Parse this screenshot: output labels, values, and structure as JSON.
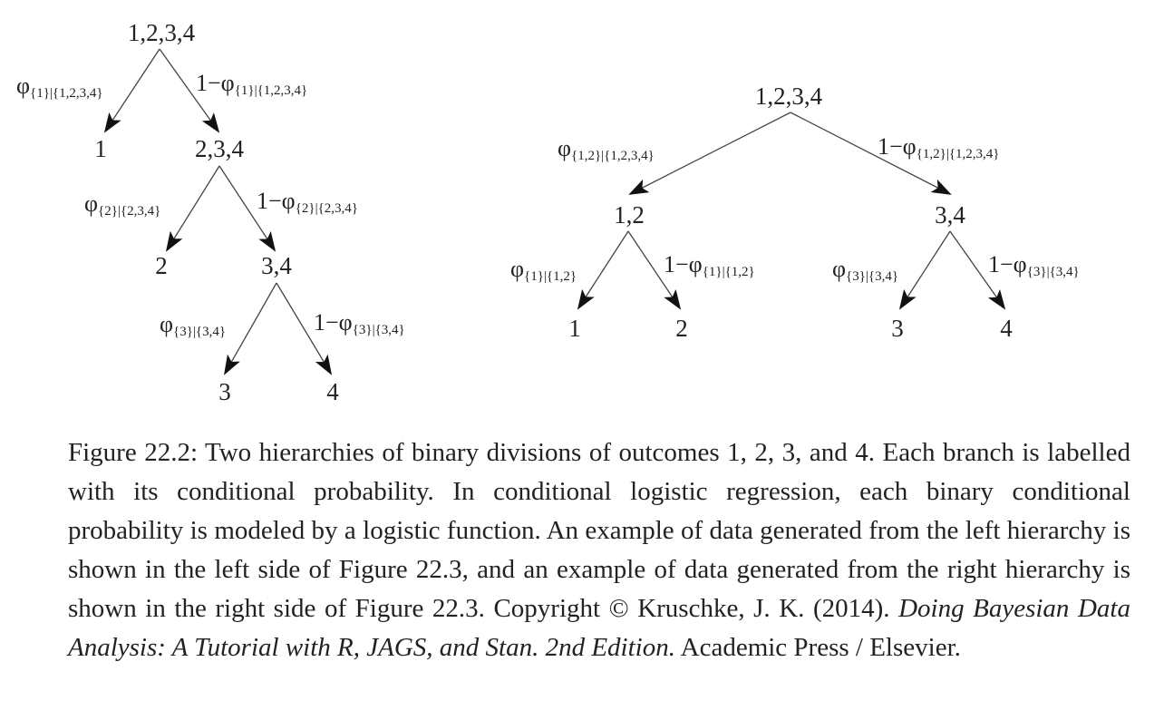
{
  "left_tree": {
    "nodes": {
      "root": "1,2,3,4",
      "n1": "1",
      "n234": "2,3,4",
      "n2": "2",
      "n34": "3,4",
      "n3": "3",
      "n4": "4"
    },
    "branches": {
      "root_left": {
        "phi": "φ",
        "one_minus": "",
        "sub": "{1}|{1,2,3,4}"
      },
      "root_right": {
        "phi": "φ",
        "one_minus": "1−",
        "sub": "{1}|{1,2,3,4}"
      },
      "n234_left": {
        "phi": "φ",
        "one_minus": "",
        "sub": "{2}|{2,3,4}"
      },
      "n234_right": {
        "phi": "φ",
        "one_minus": "1−",
        "sub": "{2}|{2,3,4}"
      },
      "n34_left": {
        "phi": "φ",
        "one_minus": "",
        "sub": "{3}|{3,4}"
      },
      "n34_right": {
        "phi": "φ",
        "one_minus": "1−",
        "sub": "{3}|{3,4}"
      }
    }
  },
  "right_tree": {
    "nodes": {
      "root": "1,2,3,4",
      "n12": "1,2",
      "n34": "3,4",
      "n1": "1",
      "n2": "2",
      "n3": "3",
      "n4": "4"
    },
    "branches": {
      "root_left": {
        "phi": "φ",
        "one_minus": "",
        "sub": "{1,2}|{1,2,3,4}"
      },
      "root_right": {
        "phi": "φ",
        "one_minus": "1−",
        "sub": "{1,2}|{1,2,3,4}"
      },
      "n12_left": {
        "phi": "φ",
        "one_minus": "",
        "sub": "{1}|{1,2}"
      },
      "n12_right": {
        "phi": "φ",
        "one_minus": "1−",
        "sub": "{1}|{1,2}"
      },
      "n34_left": {
        "phi": "φ",
        "one_minus": "",
        "sub": "{3}|{3,4}"
      },
      "n34_right": {
        "phi": "φ",
        "one_minus": "1−",
        "sub": "{3}|{3,4}"
      }
    }
  },
  "caption": {
    "part1": "Figure 22.2: Two hierarchies of binary divisions of outcomes 1, 2, 3, and 4. Each branch is labelled with its conditional probability. In conditional logistic regression, each binary conditional probability is modeled by a logistic function. An example of data generated from the left hierarchy is shown in the left side of Figure 22.3, and an example of data generated from the right hierarchy is shown in the right side of Figure 22.3. Copyright © Kruschke, J. K. (2014). ",
    "italic": "Doing Bayesian Data Analysis: A Tutorial with R, JAGS, and Stan. 2nd Edition.",
    "part2": " Academic Press / Elsevier."
  }
}
